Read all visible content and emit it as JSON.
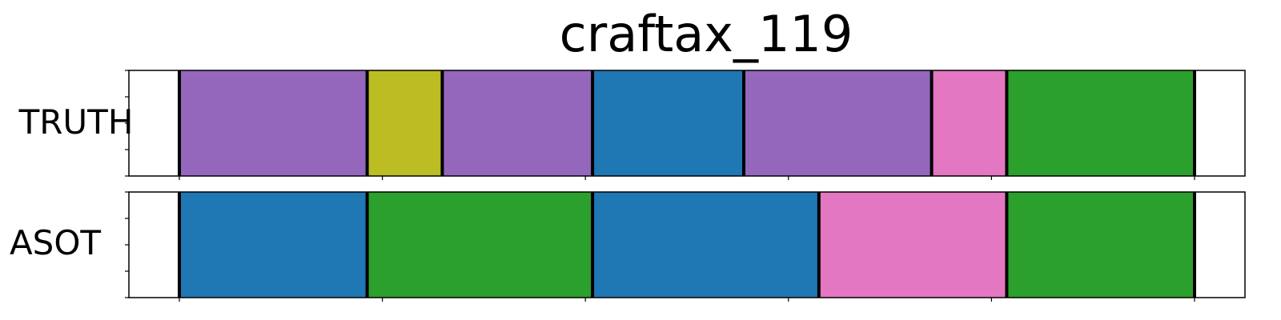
{
  "chart_data": {
    "type": "segmentation-timeline",
    "title": "craftax_119",
    "xlim": [
      0,
      1
    ],
    "x_ticks": [
      0,
      0.2,
      0.4,
      0.6,
      0.8,
      1.0
    ],
    "x_tick_labels": [],
    "y_tick_labels": [],
    "colors": {
      "purple": "#9467bd",
      "olive": "#bcbd22",
      "blue": "#1f77b4",
      "pink": "#e377c2",
      "green": "#2ca02c",
      "boundary": "#000000"
    },
    "rows": [
      {
        "label": "TRUTH",
        "segments": [
          {
            "start": 0.0,
            "end": 0.185,
            "color": "#9467bd"
          },
          {
            "start": 0.185,
            "end": 0.259,
            "color": "#bcbd22"
          },
          {
            "start": 0.259,
            "end": 0.407,
            "color": "#9467bd"
          },
          {
            "start": 0.407,
            "end": 0.556,
            "color": "#1f77b4"
          },
          {
            "start": 0.556,
            "end": 0.741,
            "color": "#9467bd"
          },
          {
            "start": 0.741,
            "end": 0.815,
            "color": "#e377c2"
          },
          {
            "start": 0.815,
            "end": 1.0,
            "color": "#2ca02c"
          }
        ]
      },
      {
        "label": "ASOT",
        "segments": [
          {
            "start": 0.0,
            "end": 0.185,
            "color": "#1f77b4"
          },
          {
            "start": 0.185,
            "end": 0.407,
            "color": "#2ca02c"
          },
          {
            "start": 0.407,
            "end": 0.63,
            "color": "#1f77b4"
          },
          {
            "start": 0.63,
            "end": 0.815,
            "color": "#e377c2"
          },
          {
            "start": 0.815,
            "end": 1.0,
            "color": "#2ca02c"
          }
        ]
      }
    ]
  }
}
